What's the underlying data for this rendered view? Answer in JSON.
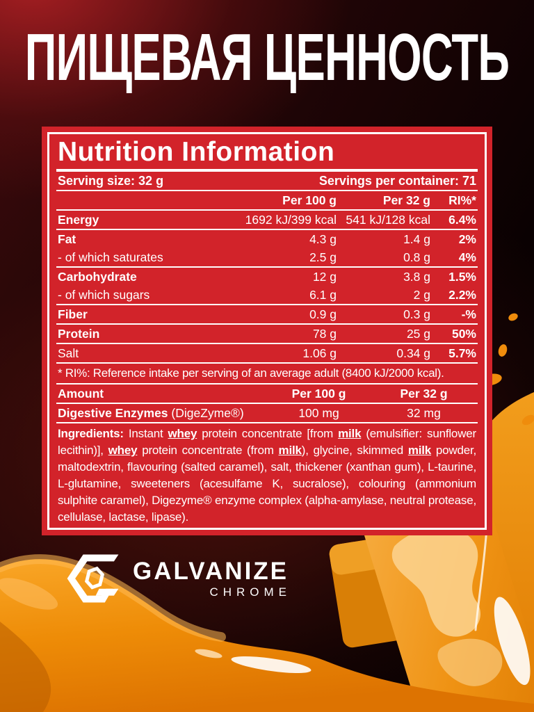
{
  "page_title": "ПИЩЕВАЯ ЦЕННОСТЬ",
  "panel": {
    "title": "Nutrition Information",
    "serving_size": "Serving size: 32 g",
    "servings_per_container": "Servings per container: 71",
    "columns": {
      "per100": "Per 100 g",
      "per32": "Per 32 g",
      "ri": "RI%*"
    },
    "rows": [
      {
        "label": "Energy",
        "per100": "1692 kJ/399 kcal",
        "per32": "541 kJ/128 kcal",
        "ri": "6.4%"
      },
      {
        "label": "Fat",
        "per100": "4.3 g",
        "per32": "1.4 g",
        "ri": "2%"
      },
      {
        "label": "- of which saturates",
        "per100": "2.5 g",
        "per32": "0.8 g",
        "ri": "4%"
      },
      {
        "label": "Carbohydrate",
        "per100": "12 g",
        "per32": "3.8 g",
        "ri": "1.5%"
      },
      {
        "label": "- of which sugars",
        "per100": "6.1 g",
        "per32": "2 g",
        "ri": "2.2%"
      },
      {
        "label": "Fiber",
        "per100": "0.9 g",
        "per32": "0.3 g",
        "ri": "-%"
      },
      {
        "label": "Protein",
        "per100": "78 g",
        "per32": "25 g",
        "ri": "50%"
      },
      {
        "label": "Salt",
        "per100": "1.06 g",
        "per32": "0.34 g",
        "ri": "5.7%"
      }
    ],
    "footnote": "* RI%: Reference intake per serving of an average adult (8400 kJ/2000 kcal).",
    "enzyme_table": {
      "amount_label": "Amount",
      "per100_label": "Per 100 g",
      "per32_label": "Per 32 g",
      "row_label_bold": "Digestive Enzymes",
      "row_label_normal": " (DigeZyme®)",
      "per100_value": "100 mg",
      "per32_value": "32 mg"
    },
    "ingredients_segments": [
      {
        "t": "Ingredients: ",
        "b": true
      },
      {
        "t": "Instant "
      },
      {
        "t": "whey",
        "b": true,
        "u": true
      },
      {
        "t": " protein concentrate [from "
      },
      {
        "t": "milk",
        "b": true,
        "u": true
      },
      {
        "t": " (emulsifier: sunflower lecithin)], "
      },
      {
        "t": "whey",
        "b": true,
        "u": true
      },
      {
        "t": " protein concentrate (from "
      },
      {
        "t": "milk",
        "b": true,
        "u": true
      },
      {
        "t": "), glycine, skimmed "
      },
      {
        "t": "milk",
        "b": true,
        "u": true
      },
      {
        "t": " powder, maltodextrin, flavouring (salted caramel), salt, thickener (xanthan gum), L-taurine, L-glutamine, sweeteners (acesulfame K, sucralose), colouring (ammonium sulphite caramel), Digezyme® enzyme complex (alpha-amylase, neutral protease, cellulase, lactase, lipase)."
      }
    ]
  },
  "logo": {
    "brand": "GALVANIZE",
    "sub": "CHROME"
  },
  "colors": {
    "label_red": "#d2232a",
    "caramel_orange": "#ef8d0e",
    "text_white": "#ffffff"
  }
}
